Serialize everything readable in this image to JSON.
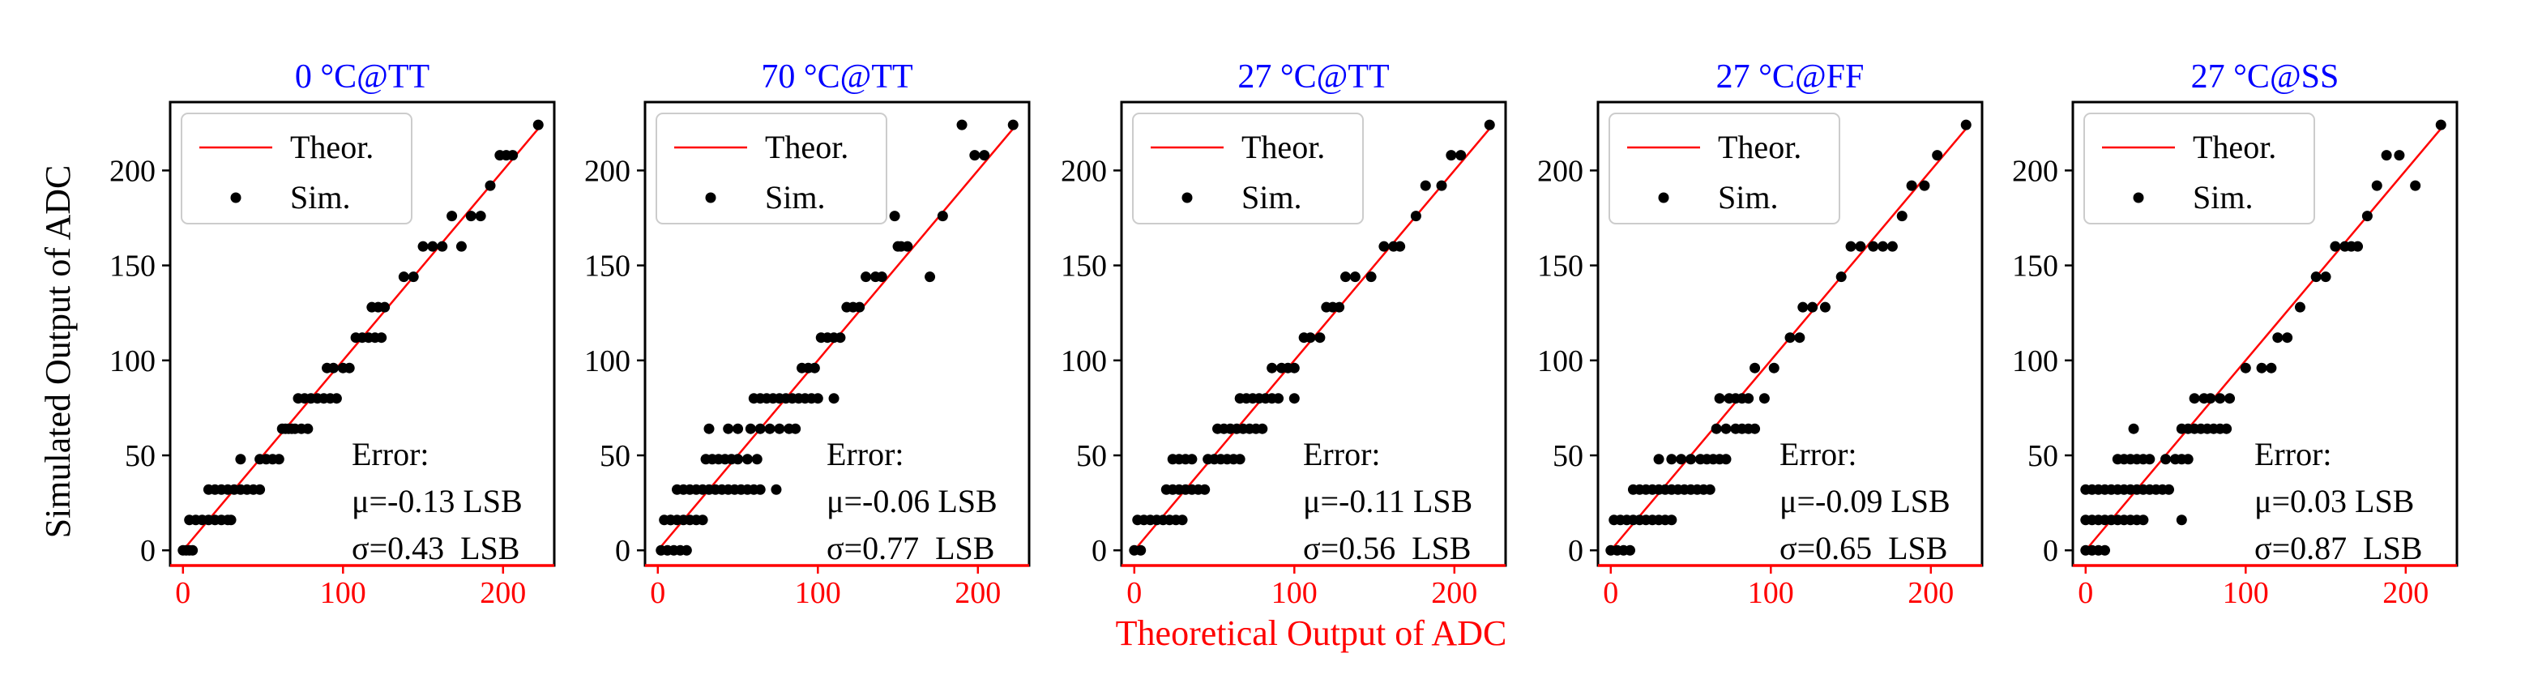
{
  "figure": {
    "ylabel": "Simulated Output of ADC",
    "xlabel": "Theoretical Output of ADC",
    "title_color": "#0000ff",
    "xaxis_color": "#ff0000",
    "line_color": "#ff0000",
    "point_color": "#000000"
  },
  "chart_data": [
    {
      "type": "scatter",
      "title": "0 °C@TT",
      "xlim": [
        -8,
        232
      ],
      "ylim": [
        -8,
        236
      ],
      "xticks": [
        "0",
        "100",
        "200"
      ],
      "yticks": [
        "0",
        "50",
        "100",
        "150",
        "200"
      ],
      "legend": {
        "position": "top-left",
        "items": [
          {
            "label": "Theor.",
            "kind": "line"
          },
          {
            "label": "Sim.",
            "kind": "point"
          }
        ]
      },
      "series": [
        {
          "name": "Theor.",
          "kind": "line",
          "x": [
            0,
            222
          ],
          "y": [
            0,
            222
          ]
        },
        {
          "name": "Sim.",
          "kind": "points",
          "x": [
            0,
            2,
            4,
            6,
            4,
            8,
            12,
            16,
            20,
            24,
            28,
            30,
            16,
            20,
            24,
            28,
            32,
            36,
            40,
            44,
            48,
            36,
            48,
            52,
            56,
            60,
            64,
            68,
            62,
            66,
            70,
            74,
            78,
            72,
            76,
            80,
            84,
            88,
            92,
            96,
            90,
            94,
            100,
            104,
            108,
            112,
            116,
            120,
            124,
            118,
            122,
            126,
            138,
            144,
            150,
            156,
            162,
            168,
            174,
            180,
            186,
            192,
            198,
            202,
            206,
            222
          ],
          "y": [
            0,
            0,
            0,
            0,
            16,
            16,
            16,
            16,
            16,
            16,
            16,
            16,
            32,
            32,
            32,
            32,
            32,
            32,
            32,
            32,
            32,
            48,
            48,
            48,
            48,
            48,
            64,
            64,
            64,
            64,
            64,
            64,
            64,
            80,
            80,
            80,
            80,
            80,
            80,
            80,
            96,
            96,
            96,
            96,
            112,
            112,
            112,
            112,
            112,
            128,
            128,
            128,
            144,
            144,
            160,
            160,
            160,
            176,
            160,
            176,
            176,
            192,
            208,
            208,
            208,
            224
          ]
        },
        {
          "name": "Error",
          "lines": [
            "Error:",
            "μ=-0.13 LSB",
            "σ=0.43  LSB"
          ]
        }
      ]
    },
    {
      "type": "scatter",
      "title": "70 °C@TT",
      "xlim": [
        -8,
        232
      ],
      "ylim": [
        -8,
        236
      ],
      "xticks": [
        "0",
        "100",
        "200"
      ],
      "yticks": [
        "0",
        "50",
        "100",
        "150",
        "200"
      ],
      "legend": {
        "position": "top-left",
        "items": [
          {
            "label": "Theor.",
            "kind": "line"
          },
          {
            "label": "Sim.",
            "kind": "point"
          }
        ]
      },
      "series": [
        {
          "name": "Theor.",
          "kind": "line",
          "x": [
            0,
            222
          ],
          "y": [
            0,
            222
          ]
        },
        {
          "name": "Sim.",
          "kind": "points",
          "x": [
            2,
            6,
            10,
            14,
            18,
            4,
            8,
            12,
            16,
            20,
            24,
            28,
            8,
            12,
            16,
            20,
            24,
            28,
            32,
            36,
            40,
            44,
            48,
            52,
            56,
            60,
            64,
            74,
            30,
            34,
            38,
            42,
            46,
            50,
            56,
            62,
            32,
            44,
            50,
            58,
            64,
            70,
            76,
            82,
            86,
            60,
            64,
            68,
            72,
            76,
            80,
            84,
            88,
            92,
            96,
            100,
            110,
            90,
            94,
            98,
            102,
            106,
            110,
            114,
            118,
            122,
            126,
            130,
            136,
            140,
            150,
            148,
            152,
            156,
            170,
            178,
            190,
            198,
            204,
            222
          ],
          "y": [
            0,
            0,
            0,
            0,
            0,
            16,
            16,
            16,
            16,
            16,
            16,
            16,
            16,
            32,
            32,
            32,
            32,
            32,
            32,
            32,
            32,
            32,
            32,
            32,
            32,
            32,
            32,
            32,
            48,
            48,
            48,
            48,
            48,
            48,
            48,
            48,
            64,
            64,
            64,
            64,
            64,
            64,
            64,
            64,
            64,
            80,
            80,
            80,
            80,
            80,
            80,
            80,
            80,
            80,
            80,
            80,
            80,
            96,
            96,
            96,
            112,
            112,
            112,
            112,
            128,
            128,
            128,
            144,
            144,
            144,
            160,
            176,
            160,
            160,
            144,
            176,
            224,
            208,
            208,
            224
          ]
        },
        {
          "name": "Error",
          "lines": [
            "Error:",
            "μ=-0.06 LSB",
            "σ=0.77  LSB"
          ]
        }
      ]
    },
    {
      "type": "scatter",
      "title": "27 °C@TT",
      "xlim": [
        -8,
        232
      ],
      "ylim": [
        -8,
        236
      ],
      "xticks": [
        "0",
        "100",
        "200"
      ],
      "yticks": [
        "0",
        "50",
        "100",
        "150",
        "200"
      ],
      "legend": {
        "position": "top-left",
        "items": [
          {
            "label": "Theor.",
            "kind": "line"
          },
          {
            "label": "Sim.",
            "kind": "point"
          }
        ]
      },
      "series": [
        {
          "name": "Theor.",
          "kind": "line",
          "x": [
            0,
            222
          ],
          "y": [
            0,
            222
          ]
        },
        {
          "name": "Sim.",
          "kind": "points",
          "x": [
            0,
            4,
            2,
            6,
            10,
            14,
            18,
            22,
            26,
            30,
            20,
            24,
            28,
            32,
            36,
            40,
            44,
            24,
            28,
            32,
            36,
            46,
            50,
            54,
            58,
            62,
            66,
            52,
            56,
            60,
            64,
            68,
            72,
            76,
            80,
            66,
            70,
            74,
            78,
            82,
            86,
            90,
            100,
            86,
            92,
            96,
            100,
            106,
            110,
            116,
            120,
            124,
            128,
            132,
            138,
            148,
            156,
            162,
            166,
            176,
            182,
            192,
            198,
            204,
            222
          ],
          "y": [
            0,
            0,
            16,
            16,
            16,
            16,
            16,
            16,
            16,
            16,
            32,
            32,
            32,
            32,
            32,
            32,
            32,
            48,
            48,
            48,
            48,
            48,
            48,
            48,
            48,
            48,
            48,
            64,
            64,
            64,
            64,
            64,
            64,
            64,
            64,
            80,
            80,
            80,
            80,
            80,
            80,
            80,
            80,
            96,
            96,
            96,
            96,
            112,
            112,
            112,
            128,
            128,
            128,
            144,
            144,
            144,
            160,
            160,
            160,
            176,
            192,
            192,
            208,
            208,
            224
          ]
        },
        {
          "name": "Error",
          "lines": [
            "Error:",
            "μ=-0.11 LSB",
            "σ=0.56  LSB"
          ]
        }
      ]
    },
    {
      "type": "scatter",
      "title": "27 °C@FF",
      "xlim": [
        -8,
        232
      ],
      "ylim": [
        -8,
        236
      ],
      "xticks": [
        "0",
        "100",
        "200"
      ],
      "yticks": [
        "0",
        "50",
        "100",
        "150",
        "200"
      ],
      "legend": {
        "position": "top-left",
        "items": [
          {
            "label": "Theor.",
            "kind": "line"
          },
          {
            "label": "Sim.",
            "kind": "point"
          }
        ]
      },
      "series": [
        {
          "name": "Theor.",
          "kind": "line",
          "x": [
            0,
            222
          ],
          "y": [
            0,
            222
          ]
        },
        {
          "name": "Sim.",
          "kind": "points",
          "x": [
            0,
            4,
            8,
            12,
            2,
            6,
            10,
            14,
            18,
            22,
            26,
            30,
            34,
            38,
            14,
            18,
            22,
            26,
            30,
            34,
            38,
            42,
            46,
            50,
            54,
            58,
            62,
            30,
            38,
            44,
            50,
            56,
            60,
            64,
            68,
            72,
            66,
            72,
            78,
            82,
            86,
            90,
            68,
            74,
            78,
            82,
            86,
            96,
            90,
            102,
            112,
            118,
            120,
            126,
            134,
            144,
            150,
            156,
            164,
            170,
            176,
            182,
            188,
            196,
            204,
            222
          ],
          "y": [
            0,
            0,
            0,
            0,
            16,
            16,
            16,
            16,
            16,
            16,
            16,
            16,
            16,
            16,
            32,
            32,
            32,
            32,
            32,
            32,
            32,
            32,
            32,
            32,
            32,
            32,
            32,
            48,
            48,
            48,
            48,
            48,
            48,
            48,
            48,
            48,
            64,
            64,
            64,
            64,
            64,
            64,
            80,
            80,
            80,
            80,
            80,
            80,
            96,
            96,
            112,
            112,
            128,
            128,
            128,
            144,
            160,
            160,
            160,
            160,
            160,
            176,
            192,
            192,
            208,
            224
          ]
        },
        {
          "name": "Error",
          "lines": [
            "Error:",
            "μ=-0.09 LSB",
            "σ=0.65  LSB"
          ]
        }
      ]
    },
    {
      "type": "scatter",
      "title": "27 °C@SS",
      "xlim": [
        -8,
        232
      ],
      "ylim": [
        -8,
        236
      ],
      "xticks": [
        "0",
        "100",
        "200"
      ],
      "yticks": [
        "0",
        "50",
        "100",
        "150",
        "200"
      ],
      "legend": {
        "position": "top-left",
        "items": [
          {
            "label": "Theor.",
            "kind": "line"
          },
          {
            "label": "Sim.",
            "kind": "point"
          }
        ]
      },
      "series": [
        {
          "name": "Theor.",
          "kind": "line",
          "x": [
            0,
            222
          ],
          "y": [
            0,
            222
          ]
        },
        {
          "name": "Sim.",
          "kind": "points",
          "x": [
            0,
            4,
            8,
            12,
            0,
            4,
            8,
            12,
            16,
            20,
            24,
            28,
            32,
            36,
            0,
            4,
            8,
            12,
            16,
            20,
            24,
            28,
            32,
            36,
            40,
            44,
            48,
            52,
            20,
            24,
            28,
            32,
            36,
            40,
            50,
            56,
            60,
            64,
            30,
            60,
            64,
            68,
            72,
            76,
            80,
            84,
            88,
            60,
            68,
            74,
            78,
            84,
            90,
            100,
            110,
            116,
            120,
            126,
            134,
            144,
            150,
            156,
            162,
            166,
            170,
            176,
            182,
            188,
            196,
            206,
            222
          ],
          "y": [
            0,
            0,
            0,
            0,
            16,
            16,
            16,
            16,
            16,
            16,
            16,
            16,
            16,
            16,
            32,
            32,
            32,
            32,
            32,
            32,
            32,
            32,
            32,
            32,
            32,
            32,
            32,
            32,
            48,
            48,
            48,
            48,
            48,
            48,
            48,
            48,
            48,
            48,
            64,
            64,
            64,
            64,
            64,
            64,
            64,
            64,
            64,
            16,
            80,
            80,
            80,
            80,
            80,
            96,
            96,
            96,
            112,
            112,
            128,
            144,
            144,
            160,
            160,
            160,
            160,
            176,
            192,
            208,
            208,
            192,
            224
          ]
        },
        {
          "name": "Error",
          "lines": [
            "Error:",
            "μ=0.03 LSB",
            "σ=0.87  LSB"
          ]
        }
      ]
    }
  ]
}
